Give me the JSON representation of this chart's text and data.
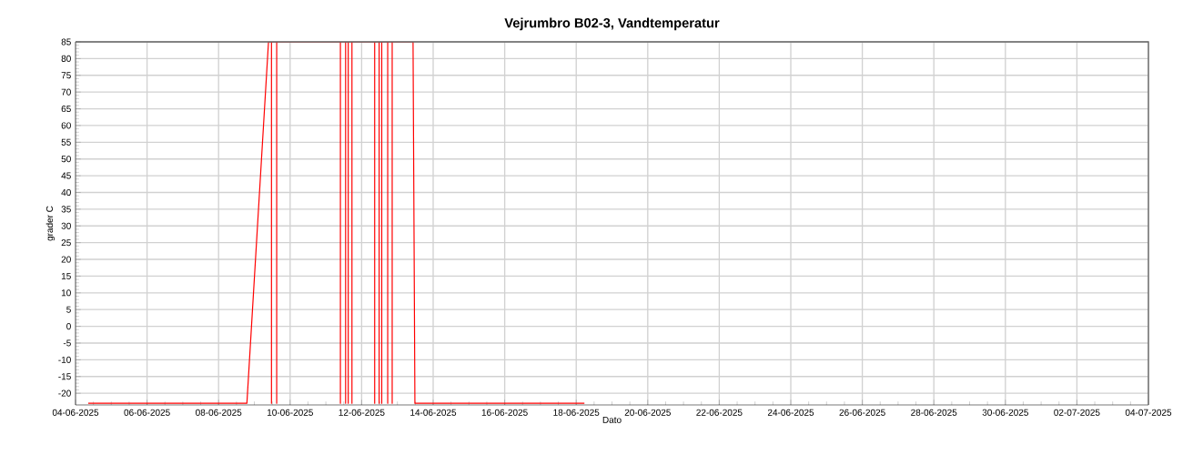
{
  "chart_data": {
    "type": "line",
    "title": "Vejrumbro B02-3, Vandtemperatur",
    "xlabel": "Dato",
    "ylabel": "grader C",
    "x": [
      "2025-06-04T08:30",
      "2025-06-08T19:00",
      "2025-06-09T09:30",
      "2025-06-09T11:30",
      "2025-06-09T11:30",
      "2025-06-09T11:30",
      "2025-06-09T15:00",
      "2025-06-09T15:00",
      "2025-06-09T15:00",
      "2025-06-11T09:45",
      "2025-06-11T09:45",
      "2025-06-11T09:45",
      "2025-06-11T13:15",
      "2025-06-11T13:15",
      "2025-06-11T13:15",
      "2025-06-11T15:00",
      "2025-06-11T15:00",
      "2025-06-11T15:00",
      "2025-06-11T17:30",
      "2025-06-11T17:30",
      "2025-06-11T17:30",
      "2025-06-12T08:45",
      "2025-06-12T08:45",
      "2025-06-12T08:45",
      "2025-06-12T11:45",
      "2025-06-12T11:45",
      "2025-06-12T11:45",
      "2025-06-12T13:30",
      "2025-06-12T13:30",
      "2025-06-12T13:30",
      "2025-06-12T17:30",
      "2025-06-12T17:30",
      "2025-06-12T17:30",
      "2025-06-12T20:30",
      "2025-06-12T20:30",
      "2025-06-12T20:30",
      "2025-06-13T10:30",
      "2025-06-13T11:45",
      "2025-06-18T05:30"
    ],
    "series": [
      {
        "color": "#ff0000",
        "values": [
          -23,
          -23,
          85,
          85,
          -23,
          85,
          85,
          -23,
          85,
          85,
          -23,
          85,
          85,
          -23,
          85,
          85,
          -23,
          85,
          85,
          -23,
          85,
          85,
          -23,
          85,
          85,
          -23,
          85,
          85,
          -23,
          85,
          85,
          -23,
          85,
          85,
          -23,
          85,
          85,
          -23,
          -23
        ]
      }
    ],
    "xlim": [
      "2025-06-04",
      "2025-07-04"
    ],
    "xticks": [
      {
        "value": "2025-06-04",
        "label": "04-06-2025"
      },
      {
        "value": "2025-06-06",
        "label": "06-06-2025"
      },
      {
        "value": "2025-06-08",
        "label": "08-06-2025"
      },
      {
        "value": "2025-06-10",
        "label": "10-06-2025"
      },
      {
        "value": "2025-06-12",
        "label": "12-06-2025"
      },
      {
        "value": "2025-06-14",
        "label": "14-06-2025"
      },
      {
        "value": "2025-06-16",
        "label": "16-06-2025"
      },
      {
        "value": "2025-06-18",
        "label": "18-06-2025"
      },
      {
        "value": "2025-06-20",
        "label": "20-06-2025"
      },
      {
        "value": "2025-06-22",
        "label": "22-06-2025"
      },
      {
        "value": "2025-06-24",
        "label": "24-06-2025"
      },
      {
        "value": "2025-06-26",
        "label": "26-06-2025"
      },
      {
        "value": "2025-06-28",
        "label": "28-06-2025"
      },
      {
        "value": "2025-06-30",
        "label": "30-06-2025"
      },
      {
        "value": "2025-07-02",
        "label": "02-07-2025"
      },
      {
        "value": "2025-07-04",
        "label": "04-07-2025"
      }
    ],
    "ylim": [
      -23.5,
      85
    ],
    "yticks": [
      -20,
      -15,
      -10,
      -5,
      0,
      5,
      10,
      15,
      20,
      25,
      30,
      35,
      40,
      45,
      50,
      55,
      60,
      65,
      70,
      75,
      80,
      85
    ],
    "grid": true,
    "marker": "none",
    "line_style": "solid"
  }
}
